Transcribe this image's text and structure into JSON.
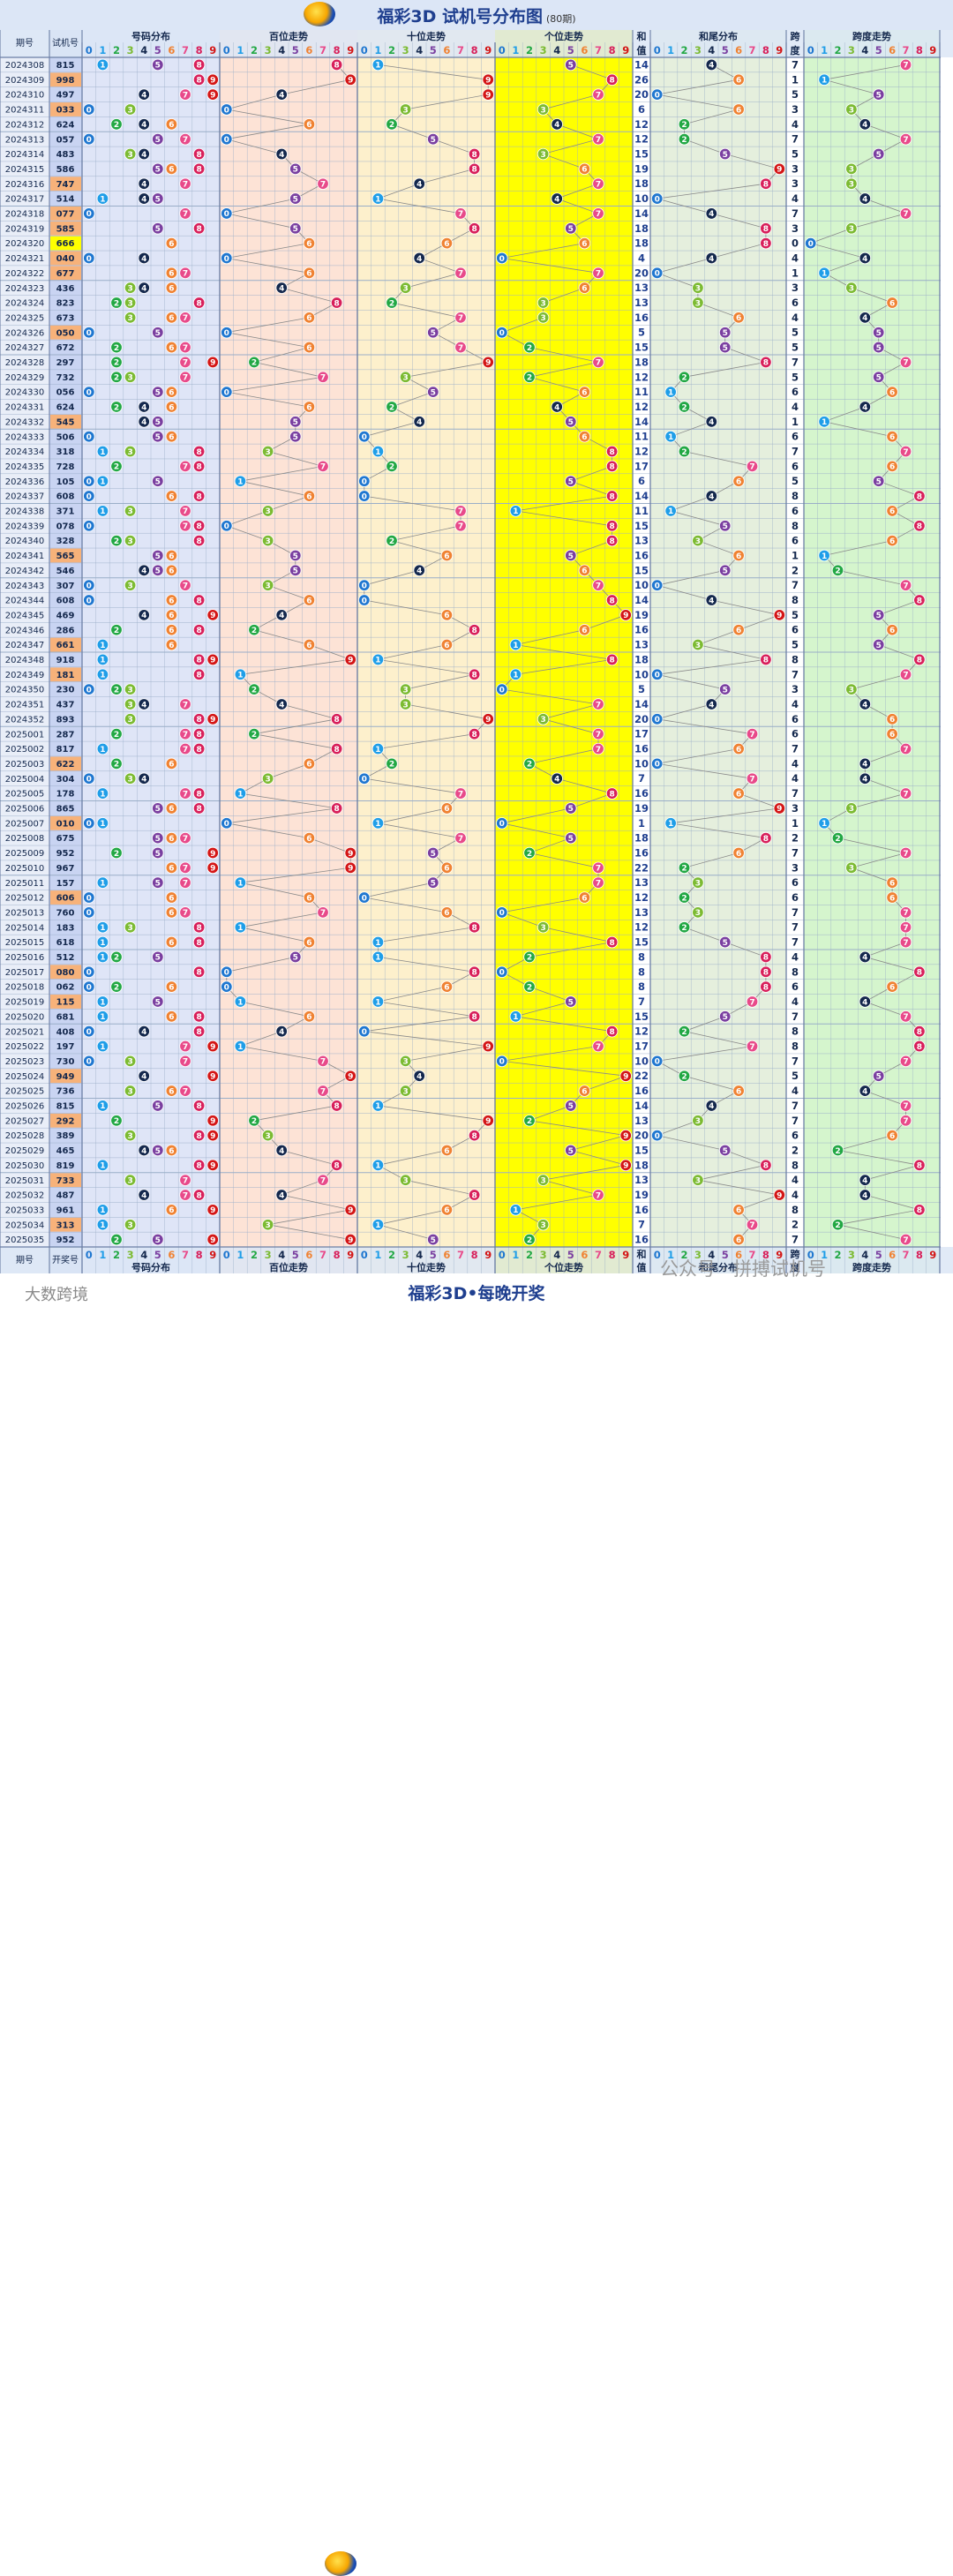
{
  "title": "福彩3D 试机号分布图",
  "title_note": "(80期)",
  "footer_brand": "大数跨境",
  "footer_slogan": "福彩3D•每晚开奖",
  "watermark": "公众号 · 拼搏试机号",
  "colors": {
    "header_bg": "#dce6f6",
    "digit_colors": [
      "#1f77d0",
      "#1f9ee8",
      "#22a844",
      "#7cbb32",
      "#14284d",
      "#7a3fa0",
      "#f08232",
      "#e84a8a",
      "#d81f5a",
      "#d41616"
    ],
    "number_highlight": "#f7b27a",
    "triple_highlight": "#ffff00",
    "zone_dist": "#dfe5f7",
    "zone_hundreds": "#fde3d6",
    "zone_tens": "#fdf0cc",
    "zone_units": "#ffff00",
    "zone_sumtail": "#e5efdd",
    "zone_span": "#d5f5cd",
    "grid": "#9aaec8"
  },
  "chart_data": {
    "type": "table",
    "columns": {
      "issue": "期号",
      "number": "试机号",
      "distribution": "号码分布",
      "hundreds": "百位走势",
      "tens": "十位走势",
      "units": "个位走势",
      "sum_top": "和",
      "sum_bottom": "值",
      "sum_tail": "和尾分布",
      "span_top": "跨",
      "span_bottom": "度",
      "span_trend": "跨度走势",
      "issue_bottom": "期号",
      "number_bottom": "开奖号"
    },
    "digits": [
      "0",
      "1",
      "2",
      "3",
      "4",
      "5",
      "6",
      "7",
      "8",
      "9"
    ],
    "rows": [
      {
        "issue": "2024308",
        "number": "815"
      },
      {
        "issue": "2024309",
        "number": "998"
      },
      {
        "issue": "2024310",
        "number": "497"
      },
      {
        "issue": "2024311",
        "number": "033"
      },
      {
        "issue": "2024312",
        "number": "624"
      },
      {
        "issue": "2024313",
        "number": "057"
      },
      {
        "issue": "2024314",
        "number": "483"
      },
      {
        "issue": "2024315",
        "number": "586"
      },
      {
        "issue": "2024316",
        "number": "747"
      },
      {
        "issue": "2024317",
        "number": "514"
      },
      {
        "issue": "2024318",
        "number": "077"
      },
      {
        "issue": "2024319",
        "number": "585"
      },
      {
        "issue": "2024320",
        "number": "666"
      },
      {
        "issue": "2024321",
        "number": "040"
      },
      {
        "issue": "2024322",
        "number": "677"
      },
      {
        "issue": "2024323",
        "number": "436"
      },
      {
        "issue": "2024324",
        "number": "823"
      },
      {
        "issue": "2024325",
        "number": "673"
      },
      {
        "issue": "2024326",
        "number": "050"
      },
      {
        "issue": "2024327",
        "number": "672"
      },
      {
        "issue": "2024328",
        "number": "297"
      },
      {
        "issue": "2024329",
        "number": "732"
      },
      {
        "issue": "2024330",
        "number": "056"
      },
      {
        "issue": "2024331",
        "number": "624"
      },
      {
        "issue": "2024332",
        "number": "545"
      },
      {
        "issue": "2024333",
        "number": "506"
      },
      {
        "issue": "2024334",
        "number": "318"
      },
      {
        "issue": "2024335",
        "number": "728"
      },
      {
        "issue": "2024336",
        "number": "105"
      },
      {
        "issue": "2024337",
        "number": "608"
      },
      {
        "issue": "2024338",
        "number": "371"
      },
      {
        "issue": "2024339",
        "number": "078"
      },
      {
        "issue": "2024340",
        "number": "328"
      },
      {
        "issue": "2024341",
        "number": "565"
      },
      {
        "issue": "2024342",
        "number": "546"
      },
      {
        "issue": "2024343",
        "number": "307"
      },
      {
        "issue": "2024344",
        "number": "608"
      },
      {
        "issue": "2024345",
        "number": "469"
      },
      {
        "issue": "2024346",
        "number": "286"
      },
      {
        "issue": "2024347",
        "number": "661"
      },
      {
        "issue": "2024348",
        "number": "918"
      },
      {
        "issue": "2024349",
        "number": "181"
      },
      {
        "issue": "2024350",
        "number": "230"
      },
      {
        "issue": "2024351",
        "number": "437"
      },
      {
        "issue": "2024352",
        "number": "893"
      },
      {
        "issue": "2025001",
        "number": "287"
      },
      {
        "issue": "2025002",
        "number": "817"
      },
      {
        "issue": "2025003",
        "number": "622"
      },
      {
        "issue": "2025004",
        "number": "304"
      },
      {
        "issue": "2025005",
        "number": "178"
      },
      {
        "issue": "2025006",
        "number": "865"
      },
      {
        "issue": "2025007",
        "number": "010"
      },
      {
        "issue": "2025008",
        "number": "675"
      },
      {
        "issue": "2025009",
        "number": "952"
      },
      {
        "issue": "2025010",
        "number": "967"
      },
      {
        "issue": "2025011",
        "number": "157"
      },
      {
        "issue": "2025012",
        "number": "606"
      },
      {
        "issue": "2025013",
        "number": "760"
      },
      {
        "issue": "2025014",
        "number": "183"
      },
      {
        "issue": "2025015",
        "number": "618"
      },
      {
        "issue": "2025016",
        "number": "512"
      },
      {
        "issue": "2025017",
        "number": "080"
      },
      {
        "issue": "2025018",
        "number": "062"
      },
      {
        "issue": "2025019",
        "number": "115"
      },
      {
        "issue": "2025020",
        "number": "681"
      },
      {
        "issue": "2025021",
        "number": "408"
      },
      {
        "issue": "2025022",
        "number": "197"
      },
      {
        "issue": "2025023",
        "number": "730"
      },
      {
        "issue": "2025024",
        "number": "949"
      },
      {
        "issue": "2025025",
        "number": "736"
      },
      {
        "issue": "2025026",
        "number": "815"
      },
      {
        "issue": "2025027",
        "number": "292"
      },
      {
        "issue": "2025028",
        "number": "389"
      },
      {
        "issue": "2025029",
        "number": "465"
      },
      {
        "issue": "2025030",
        "number": "819"
      },
      {
        "issue": "2025031",
        "number": "733"
      },
      {
        "issue": "2025032",
        "number": "487"
      },
      {
        "issue": "2025033",
        "number": "961"
      },
      {
        "issue": "2025034",
        "number": "313"
      },
      {
        "issue": "2025035",
        "number": "952"
      }
    ]
  }
}
